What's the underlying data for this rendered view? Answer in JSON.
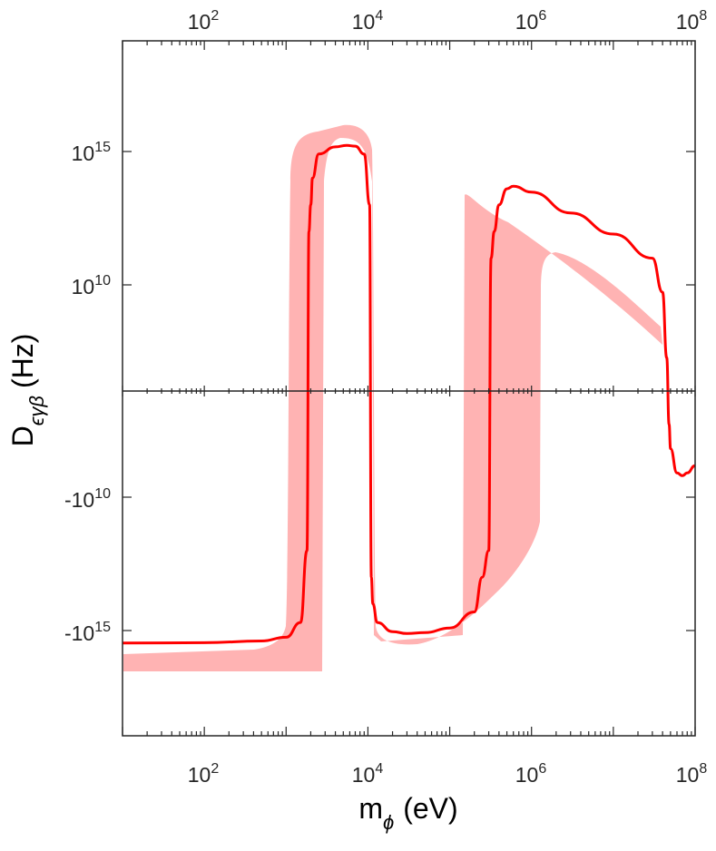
{
  "chart_data": {
    "type": "line",
    "title": "",
    "xscale": "log",
    "xlim": [
      10,
      100000000
    ],
    "x_ticks": [
      {
        "value": 100,
        "base": "10",
        "exp": "2"
      },
      {
        "value": 10000,
        "base": "10",
        "exp": "4"
      },
      {
        "value": 1000000,
        "base": "10",
        "exp": "6"
      },
      {
        "value": 100000000,
        "base": "10",
        "exp": "8"
      }
    ],
    "y_ticks": [
      {
        "value": 1000000000000000.0,
        "base": "10",
        "exp": "15"
      },
      {
        "value": 10000000000.0,
        "base": "10",
        "exp": "10"
      },
      {
        "value": -10000000000.0,
        "base": "-10",
        "exp": "10"
      },
      {
        "value": -1000000000000000.0,
        "base": "-10",
        "exp": "15"
      }
    ],
    "xlabel": {
      "main": "m",
      "sub": "ϕ",
      "unit": "(eV)"
    },
    "ylabel": {
      "main": "D",
      "sub": "ϵγβ",
      "unit": "(Hz)"
    },
    "grid": false,
    "box": true,
    "series": [
      {
        "color": "#ff0000",
        "band_color": "#ffb3b3",
        "x": [
          10,
          100,
          500,
          1000,
          1500,
          1800,
          1900,
          2000,
          2100,
          2500,
          4000,
          5500,
          7000,
          9000,
          10500,
          11000,
          11500,
          13000,
          20000,
          30000,
          50000,
          100000,
          200000,
          250000,
          300000,
          320000,
          350000,
          400000,
          500000,
          600000,
          1000000,
          3000000,
          10000000,
          30000000,
          40000000,
          45000000,
          48000000,
          50000000,
          60000000,
          70000000,
          80000000,
          100000000
        ],
        "y": [
          -3000000000000000.0,
          -2900000000000000.0,
          -2500000000000000.0,
          -1800000000000000.0,
          -500000000000000.0,
          "-1e12",
          "1e12",
          "1e13",
          "1e14",
          800000000000000.0,
          1500000000000000.0,
          1700000000000000.0,
          1600000000000000.0,
          800000000000000.0,
          "1e13",
          "-1e13",
          "-1e14",
          "-5e14",
          -1100000000000000.0,
          -1300000000000000.0,
          -1200000000000000.0,
          -800000000000000.0,
          -200000000000000.0,
          "-1e13",
          "-1e12",
          "1e11",
          "1e12",
          "1e13",
          40000000000000.0,
          50000000000000.0,
          30000000000000.0,
          5000000000000.0,
          800000000000.0,
          100000000000.0,
          "5e9",
          "1e7",
          "-1e7",
          "-1e8",
          "-1e9",
          "-1.3e9",
          "-1e9",
          "-5e8"
        ]
      }
    ]
  }
}
